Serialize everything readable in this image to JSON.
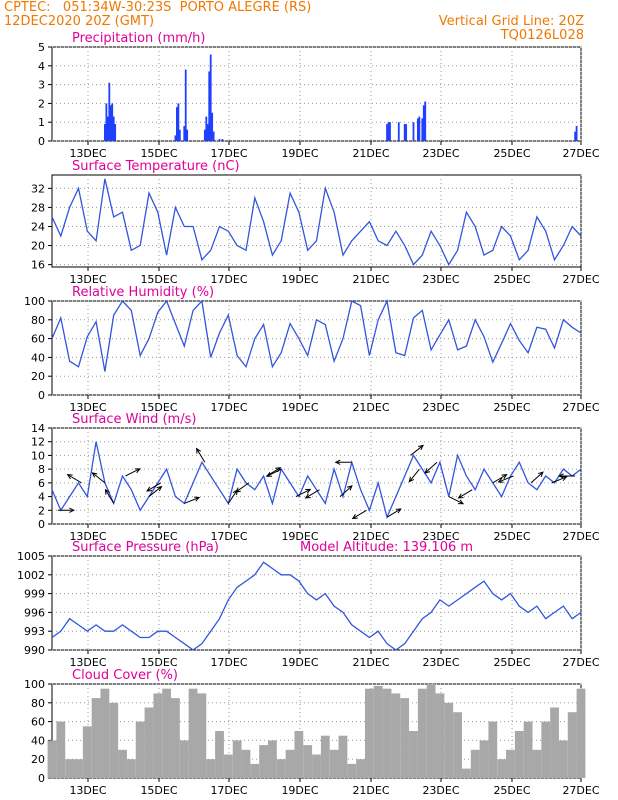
{
  "header": {
    "line1_left": "CPTEC:   051:34W-30:23S  PORTO ALEGRE (RS)",
    "line2_left": "12DEC2020 20Z (GMT)",
    "line2_right": "Vertical Grid Line: 20Z",
    "line3_right": "TQ0126L028"
  },
  "colors": {
    "header": "#f07800",
    "title": "#e0009a",
    "line": "#3355dd",
    "bar": "#2040ff",
    "cloud": "#a8a8a8",
    "grid": "#9a9a9a",
    "arrow": "#000000"
  },
  "x_ticks": [
    "13DEC",
    "15DEC",
    "17DEC",
    "19DEC",
    "21DEC",
    "23DEC",
    "25DEC",
    "27DEC"
  ],
  "chart_data": [
    {
      "id": "precip",
      "type": "bar",
      "title": "Precipitation (mm/h)",
      "ylim": [
        0,
        5
      ],
      "yticks": [
        "0",
        "1",
        "2",
        "3",
        "4",
        "5"
      ],
      "x_hours_since_start": [
        36,
        37,
        38,
        39,
        40,
        41,
        42,
        43,
        84,
        85,
        86,
        87,
        90,
        91,
        92,
        104,
        105,
        106,
        107,
        108,
        109,
        110,
        114,
        116,
        228,
        229,
        230,
        236,
        240,
        241,
        246,
        249,
        250,
        252,
        253,
        254,
        356,
        357
      ],
      "values": [
        0.9,
        2.0,
        1.3,
        3.1,
        1.9,
        2.0,
        1.3,
        0.9,
        0.3,
        1.8,
        2.0,
        0.6,
        0.8,
        3.8,
        0.6,
        0.6,
        1.3,
        0.9,
        3.7,
        4.6,
        1.5,
        0.5,
        0.1,
        0.1,
        0.9,
        1.0,
        1.0,
        1.0,
        0.9,
        0.9,
        1.0,
        1.2,
        1.3,
        1.2,
        1.9,
        2.1,
        0.5,
        0.8
      ]
    },
    {
      "id": "temp",
      "type": "line",
      "title": "Surface Temperature (nC)",
      "ylim": [
        15.5,
        34.8
      ],
      "yticks": [
        "16",
        "20",
        "24",
        "28",
        "32"
      ],
      "ytick_values": [
        16,
        20,
        24,
        28,
        32
      ],
      "x_hours_since_start": [
        0,
        6,
        12,
        18,
        24,
        30,
        36,
        42,
        48,
        54,
        60,
        66,
        72,
        78,
        84,
        90,
        96,
        102,
        108,
        114,
        120,
        126,
        132,
        138,
        144,
        150,
        156,
        162,
        168,
        174,
        180,
        186,
        192,
        198,
        204,
        210,
        216,
        222,
        228,
        234,
        240,
        246,
        252,
        258,
        264,
        270,
        276,
        282,
        288,
        294,
        300,
        306,
        312,
        318,
        324,
        330,
        336,
        342,
        348,
        354,
        360
      ],
      "values": [
        26,
        22,
        28,
        32,
        23,
        21,
        34,
        26,
        27,
        19,
        20,
        31,
        27,
        18,
        28,
        24,
        24,
        17,
        19,
        24,
        23,
        20,
        19,
        30,
        25,
        18,
        21,
        31,
        27,
        19,
        21,
        32,
        27,
        18,
        21,
        23,
        25,
        21,
        20,
        23,
        20,
        16,
        18,
        23,
        20,
        16,
        19,
        27,
        24,
        18,
        19,
        24,
        22,
        17,
        19,
        26,
        23,
        17,
        20,
        24,
        22
      ]
    },
    {
      "id": "rh",
      "type": "line",
      "title": "Relative Humidity (%)",
      "ylim": [
        0,
        100
      ],
      "yticks": [
        "0",
        "20",
        "40",
        "60",
        "80",
        "100"
      ],
      "ytick_values": [
        0,
        20,
        40,
        60,
        80,
        100
      ],
      "x_hours_since_start": [
        0,
        6,
        12,
        18,
        24,
        30,
        36,
        42,
        48,
        54,
        60,
        66,
        72,
        78,
        84,
        90,
        96,
        102,
        108,
        114,
        120,
        126,
        132,
        138,
        144,
        150,
        156,
        162,
        168,
        174,
        180,
        186,
        192,
        198,
        204,
        210,
        216,
        222,
        228,
        234,
        240,
        246,
        252,
        258,
        264,
        270,
        276,
        282,
        288,
        294,
        300,
        306,
        312,
        318,
        324,
        330,
        336,
        342,
        348,
        354,
        360
      ],
      "values": [
        60,
        82,
        36,
        30,
        62,
        78,
        25,
        85,
        100,
        90,
        42,
        60,
        88,
        100,
        76,
        52,
        90,
        100,
        40,
        66,
        85,
        42,
        30,
        60,
        75,
        30,
        45,
        76,
        60,
        42,
        80,
        75,
        36,
        60,
        100,
        95,
        42,
        80,
        100,
        45,
        42,
        82,
        90,
        48,
        64,
        80,
        48,
        52,
        80,
        62,
        35,
        55,
        76,
        58,
        45,
        72,
        70,
        50,
        80,
        72,
        66
      ]
    },
    {
      "id": "wind",
      "type": "line",
      "title": "Surface Wind (m/s)",
      "ylim": [
        0,
        14
      ],
      "yticks": [
        "0",
        "2",
        "4",
        "6",
        "8",
        "10",
        "12",
        "14"
      ],
      "ytick_values": [
        0,
        2,
        4,
        6,
        8,
        10,
        12,
        14
      ],
      "x_hours_since_start": [
        0,
        6,
        12,
        18,
        24,
        30,
        36,
        42,
        48,
        54,
        60,
        66,
        72,
        78,
        84,
        90,
        96,
        102,
        108,
        114,
        120,
        126,
        132,
        138,
        144,
        150,
        156,
        162,
        168,
        174,
        180,
        186,
        192,
        198,
        204,
        210,
        216,
        222,
        228,
        234,
        240,
        246,
        252,
        258,
        264,
        270,
        276,
        282,
        288,
        294,
        300,
        306,
        312,
        318,
        324,
        330,
        336,
        342,
        348,
        354,
        360
      ],
      "values": [
        5,
        2,
        4,
        6,
        4,
        12,
        6,
        3,
        7,
        5,
        2,
        4,
        6,
        8,
        4,
        3,
        6,
        9,
        7,
        5,
        3,
        8,
        6,
        5,
        7,
        3,
        8,
        6,
        4,
        7,
        5,
        3,
        8,
        4,
        9,
        5,
        2,
        6,
        1,
        4,
        7,
        10,
        8,
        6,
        9,
        4,
        10,
        7,
        5,
        8,
        6,
        4,
        7,
        9,
        6,
        5,
        7,
        6,
        8,
        7,
        8
      ],
      "arrows": [
        {
          "h": 4,
          "dx": 1,
          "dy": 0
        },
        {
          "h": 20,
          "dx": -1,
          "dy": 0.6
        },
        {
          "h": 36,
          "dx": -1,
          "dy": 0.8
        },
        {
          "h": 42,
          "dx": -0.6,
          "dy": 1
        },
        {
          "h": 50,
          "dx": 1,
          "dy": 0.5
        },
        {
          "h": 66,
          "dx": 1,
          "dy": 0.8
        },
        {
          "h": 74,
          "dx": -1,
          "dy": -0.6
        },
        {
          "h": 90,
          "dx": 1,
          "dy": 0.4
        },
        {
          "h": 104,
          "dx": -0.6,
          "dy": 1
        },
        {
          "h": 120,
          "dx": 0.6,
          "dy": 0.9
        },
        {
          "h": 134,
          "dx": -1,
          "dy": -0.7
        },
        {
          "h": 146,
          "dx": 1,
          "dy": 0.6
        },
        {
          "h": 156,
          "dx": -1,
          "dy": -0.5
        },
        {
          "h": 166,
          "dx": 1,
          "dy": 0.5
        },
        {
          "h": 182,
          "dx": -1,
          "dy": -0.6
        },
        {
          "h": 196,
          "dx": 1,
          "dy": 0.9
        },
        {
          "h": 204,
          "dx": -1,
          "dy": 0
        },
        {
          "h": 214,
          "dx": -1,
          "dy": -0.6
        },
        {
          "h": 228,
          "dx": 1,
          "dy": 0.6
        },
        {
          "h": 244,
          "dx": 1,
          "dy": 0.8
        },
        {
          "h": 250,
          "dx": -0.8,
          "dy": -1
        },
        {
          "h": 262,
          "dx": -1,
          "dy": -0.9
        },
        {
          "h": 270,
          "dx": 1,
          "dy": -0.5
        },
        {
          "h": 286,
          "dx": -1,
          "dy": -0.6
        },
        {
          "h": 300,
          "dx": 1,
          "dy": 0.6
        },
        {
          "h": 314,
          "dx": -1,
          "dy": -0.4
        },
        {
          "h": 326,
          "dx": 1,
          "dy": 0.9
        },
        {
          "h": 340,
          "dx": 1,
          "dy": 0.4
        },
        {
          "h": 356,
          "dx": -1,
          "dy": 0
        }
      ]
    },
    {
      "id": "press",
      "type": "line",
      "title": "Surface Pressure (hPa)",
      "note": "Model Altitude: 139.106 m",
      "ylim": [
        990,
        1005
      ],
      "yticks": [
        "990",
        "993",
        "996",
        "999",
        "1002",
        "1005"
      ],
      "ytick_values": [
        990,
        993,
        996,
        999,
        1002,
        1005
      ],
      "x_hours_since_start": [
        0,
        6,
        12,
        18,
        24,
        30,
        36,
        42,
        48,
        54,
        60,
        66,
        72,
        78,
        84,
        90,
        96,
        102,
        108,
        114,
        120,
        126,
        132,
        138,
        144,
        150,
        156,
        162,
        168,
        174,
        180,
        186,
        192,
        198,
        204,
        210,
        216,
        222,
        228,
        234,
        240,
        246,
        252,
        258,
        264,
        270,
        276,
        282,
        288,
        294,
        300,
        306,
        312,
        318,
        324,
        330,
        336,
        342,
        348,
        354,
        360
      ],
      "values": [
        992,
        993,
        995,
        994,
        993,
        994,
        993,
        993,
        994,
        993,
        992,
        992,
        993,
        993,
        992,
        991,
        990,
        991,
        993,
        995,
        998,
        1000,
        1001,
        1002,
        1004,
        1003,
        1002,
        1002,
        1001,
        999,
        998,
        999,
        997,
        996,
        994,
        993,
        992,
        993,
        991,
        990,
        991,
        993,
        995,
        996,
        998,
        997,
        998,
        999,
        1000,
        1001,
        999,
        998,
        999,
        997,
        996,
        997,
        995,
        996,
        997,
        995,
        996
      ]
    },
    {
      "id": "cloud",
      "type": "area",
      "title": "Cloud Cover (%)",
      "ylim": [
        0,
        100
      ],
      "yticks": [
        "0",
        "20",
        "40",
        "60",
        "80",
        "100"
      ],
      "ytick_values": [
        0,
        20,
        40,
        60,
        80,
        100
      ],
      "x_hours_since_start": [
        0,
        6,
        12,
        18,
        24,
        30,
        36,
        42,
        48,
        54,
        60,
        66,
        72,
        78,
        84,
        90,
        96,
        102,
        108,
        114,
        120,
        126,
        132,
        138,
        144,
        150,
        156,
        162,
        168,
        174,
        180,
        186,
        192,
        198,
        204,
        210,
        216,
        222,
        228,
        234,
        240,
        246,
        252,
        258,
        264,
        270,
        276,
        282,
        288,
        294,
        300,
        306,
        312,
        318,
        324,
        330,
        336,
        342,
        348,
        354,
        360
      ],
      "values": [
        40,
        60,
        20,
        20,
        55,
        85,
        95,
        80,
        30,
        20,
        60,
        75,
        90,
        95,
        85,
        40,
        95,
        90,
        20,
        50,
        25,
        40,
        30,
        15,
        35,
        40,
        20,
        30,
        50,
        35,
        25,
        45,
        30,
        45,
        15,
        20,
        95,
        98,
        95,
        90,
        85,
        50,
        95,
        100,
        90,
        80,
        70,
        10,
        30,
        40,
        60,
        20,
        30,
        50,
        60,
        30,
        60,
        75,
        40,
        70,
        95
      ]
    }
  ]
}
